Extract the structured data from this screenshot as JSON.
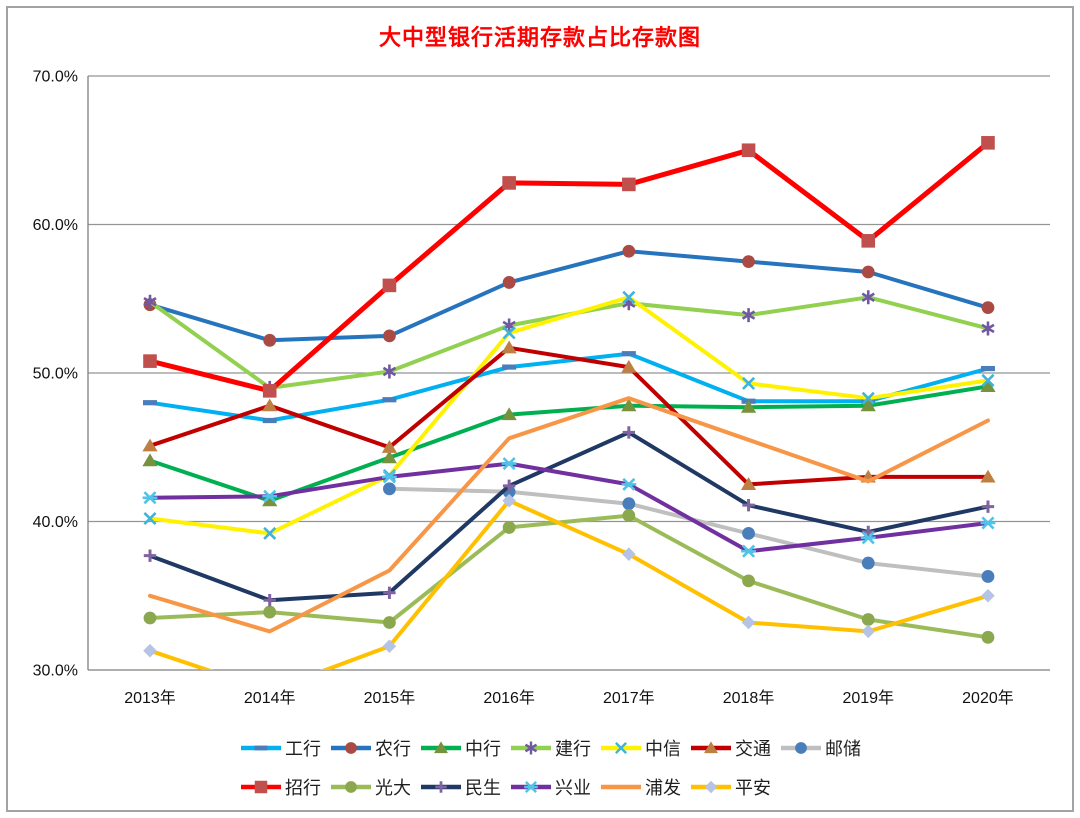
{
  "title": "大中型银行活期存款占比存款图",
  "chart_data": {
    "type": "line",
    "title": "大中型银行活期存款占比存款图",
    "title_color": "#ff0000",
    "categories": [
      "2013年",
      "2014年",
      "2015年",
      "2016年",
      "2017年",
      "2018年",
      "2019年",
      "2020年"
    ],
    "yticks": [
      "70.0%",
      "60.0%",
      "50.0%",
      "40.0%",
      "30.0%"
    ],
    "ylim": [
      30,
      70
    ],
    "grid": true,
    "legend_position": "bottom",
    "unit": "percent",
    "series": [
      {
        "id": "icbc",
        "name": "工行",
        "color": "#00b0f0",
        "marker": "dash",
        "marker_color": "#4a7ebb",
        "values": [
          48.0,
          46.8,
          48.2,
          50.4,
          51.3,
          48.1,
          48.1,
          50.3
        ]
      },
      {
        "id": "abc",
        "name": "农行",
        "color": "#2674be",
        "marker": "circle",
        "marker_color": "#a94a44",
        "values": [
          54.6,
          52.2,
          52.5,
          56.1,
          58.2,
          57.5,
          56.8,
          54.4
        ]
      },
      {
        "id": "boc",
        "name": "中行",
        "color": "#00b050",
        "marker": "triangle",
        "marker_color": "#76923c",
        "values": [
          44.1,
          41.4,
          44.3,
          47.2,
          47.8,
          47.7,
          47.8,
          49.1
        ]
      },
      {
        "id": "ccb",
        "name": "建行",
        "color": "#92d050",
        "marker": "asterisk",
        "marker_color": "#7059a2",
        "values": [
          54.8,
          49.0,
          50.1,
          53.2,
          54.7,
          53.9,
          55.1,
          53.0
        ]
      },
      {
        "id": "citic",
        "name": "中信",
        "color": "#fff200",
        "marker": "x",
        "marker_color": "#3eb3dc",
        "values": [
          40.2,
          39.2,
          43.1,
          52.7,
          55.1,
          49.3,
          48.3,
          49.5
        ]
      },
      {
        "id": "bocom",
        "name": "交通",
        "color": "#c00000",
        "marker": "triangle",
        "marker_color": "#c07f42",
        "values": [
          45.1,
          47.8,
          45.0,
          51.7,
          50.4,
          42.5,
          43.0,
          43.0
        ]
      },
      {
        "id": "psbc",
        "name": "邮储",
        "color": "#bfbfbf",
        "marker": "circle",
        "marker_color": "#4a7ebb",
        "values": [
          null,
          null,
          42.2,
          42.0,
          41.2,
          39.2,
          37.2,
          36.3
        ]
      },
      {
        "id": "cmb",
        "name": "招行",
        "color": "#fe0000",
        "marker": "square",
        "marker_color": "#c0504d",
        "values": [
          50.8,
          48.8,
          55.9,
          62.8,
          62.7,
          65.0,
          58.9,
          65.5
        ]
      },
      {
        "id": "ceb",
        "name": "光大",
        "color": "#9bbb59",
        "marker": "circle",
        "marker_color": "#8ca84f",
        "values": [
          33.5,
          33.9,
          33.2,
          39.6,
          40.4,
          36.0,
          33.4,
          32.2
        ]
      },
      {
        "id": "minsheng",
        "name": "民生",
        "color": "#1f3864",
        "marker": "plus",
        "marker_color": "#8064a2",
        "values": [
          37.7,
          34.7,
          35.2,
          42.4,
          46.0,
          41.1,
          39.3,
          41.0
        ]
      },
      {
        "id": "cib",
        "name": "兴业",
        "color": "#7030a0",
        "marker": "x-dash",
        "marker_color": "#4fc3e8",
        "values": [
          41.6,
          41.7,
          43.0,
          43.9,
          42.5,
          38.0,
          38.9,
          39.9
        ]
      },
      {
        "id": "spdb",
        "name": "浦发",
        "color": "#f79646",
        "marker": "none",
        "marker_color": "#f79646",
        "values": [
          35.0,
          32.6,
          36.7,
          45.6,
          48.3,
          45.5,
          42.7,
          46.8
        ]
      },
      {
        "id": "pingan",
        "name": "平安",
        "color": "#ffc000",
        "marker": "diamond",
        "marker_color": "#b5c3e4",
        "values": [
          31.3,
          28.6,
          31.6,
          41.4,
          37.8,
          33.2,
          32.6,
          35.0
        ]
      }
    ]
  }
}
